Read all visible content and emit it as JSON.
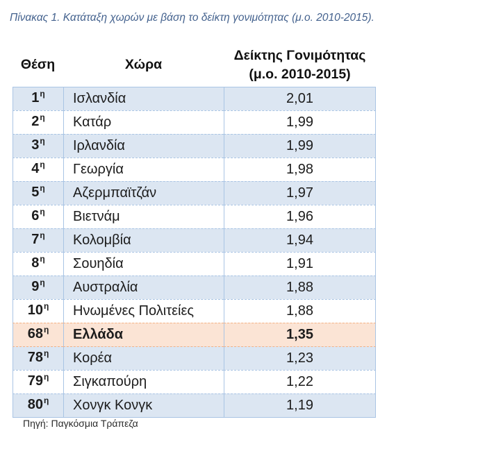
{
  "caption": "Πίνακας 1. Κατάταξη χωρών με βάση το δείκτη γονιμότητας (μ.ο. 2010-2015).",
  "table": {
    "headers": {
      "rank": "Θέση",
      "country": "Χώρα",
      "fertility_line1": "Δείκτης Γονιμότητας",
      "fertility_line2": "(μ.ο. 2010-2015)"
    },
    "rows": [
      {
        "rank": "1",
        "rank_suffix": "η",
        "country": "Ισλανδία",
        "fertility": "2,01"
      },
      {
        "rank": "2",
        "rank_suffix": "η",
        "country": "Κατάρ",
        "fertility": "1,99"
      },
      {
        "rank": "3",
        "rank_suffix": "η",
        "country": "Ιρλανδία",
        "fertility": "1,99"
      },
      {
        "rank": "4",
        "rank_suffix": "η",
        "country": "Γεωργία",
        "fertility": "1,98"
      },
      {
        "rank": "5",
        "rank_suffix": "η",
        "country": "Αζερμπαϊτζάν",
        "fertility": "1,97"
      },
      {
        "rank": "6",
        "rank_suffix": "η",
        "country": "Βιετνάμ",
        "fertility": "1,96"
      },
      {
        "rank": "7",
        "rank_suffix": "η",
        "country": "Κολομβία",
        "fertility": "1,94"
      },
      {
        "rank": "8",
        "rank_suffix": "η",
        "country": "Σουηδία",
        "fertility": "1,91"
      },
      {
        "rank": "9",
        "rank_suffix": "η",
        "country": "Αυστραλία",
        "fertility": "1,88"
      },
      {
        "rank": "10",
        "rank_suffix": "η",
        "country": "Ηνωμένες Πολιτείες",
        "fertility": "1,88"
      },
      {
        "rank": "68",
        "rank_suffix": "η",
        "country": "Ελλάδα",
        "fertility": "1,35",
        "highlight": true
      },
      {
        "rank": "78",
        "rank_suffix": "η",
        "country": "Κορέα",
        "fertility": "1,23"
      },
      {
        "rank": "79",
        "rank_suffix": "η",
        "country": "Σιγκαπούρη",
        "fertility": "1,22"
      },
      {
        "rank": "80",
        "rank_suffix": "η",
        "country": "Χονγκ Κονγκ",
        "fertility": "1,19"
      }
    ]
  },
  "source": "Πηγή: Παγκόσμια Τράπεζα",
  "colors": {
    "caption": "#44628e",
    "row_band": "#dce6f2",
    "highlight_row": "#fbe4d5",
    "rule": "#a9c4e4",
    "highlight_rule": "#f4b183"
  }
}
